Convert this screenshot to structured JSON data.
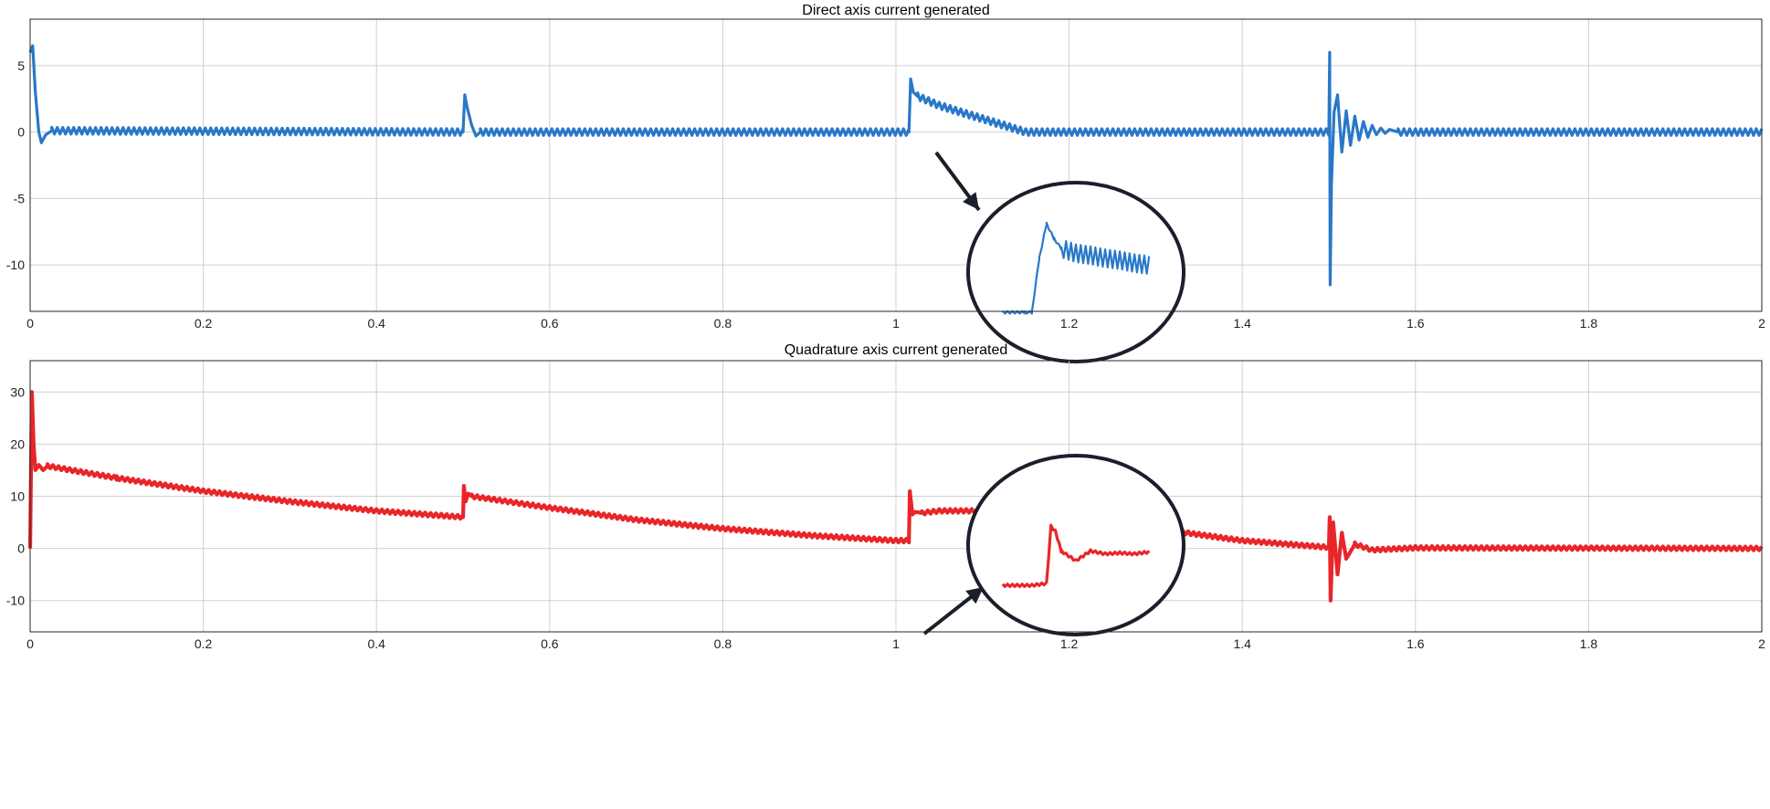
{
  "chart_data": [
    {
      "type": "line",
      "title": "Direct axis current generated",
      "xlabel": "",
      "ylabel": "",
      "xlim": [
        0,
        2
      ],
      "ylim": [
        -13.5,
        8.5
      ],
      "xticks": [
        0,
        0.2,
        0.4,
        0.6,
        0.8,
        1,
        1.2,
        1.4,
        1.6,
        1.8,
        2
      ],
      "xtick_labels": [
        "0",
        "0.2",
        "0.4",
        "0.6",
        "0.8",
        "1",
        "1.2",
        "1.4",
        "1.6",
        "1.8",
        "2"
      ],
      "yticks": [
        5,
        0,
        -5,
        -10
      ],
      "ytick_labels": [
        "5",
        "0",
        "-5",
        "-10"
      ],
      "grid": true,
      "series": [
        {
          "color": "#2878c8",
          "x": [
            0,
            0.003,
            0.006,
            0.01,
            0.013,
            0.018,
            0.025,
            0.5,
            0.502,
            0.505,
            0.51,
            0.515,
            0.52,
            1.015,
            1.017,
            1.02,
            1.025,
            1.05,
            1.1,
            1.15,
            1.2,
            1.5,
            1.501,
            1.5015,
            1.503,
            1.506,
            1.51,
            1.515,
            1.52,
            1.525,
            1.53,
            1.535,
            1.54,
            1.545,
            1.55,
            1.555,
            1.56,
            1.565,
            1.57,
            1.58,
            1.6,
            2
          ],
          "y": [
            6.0,
            6.5,
            3.0,
            0.0,
            -0.8,
            -0.2,
            0.1,
            0.0,
            2.8,
            1.8,
            0.5,
            -0.3,
            0.0,
            0.0,
            4.0,
            3.0,
            2.7,
            2.0,
            1.0,
            0.0,
            0.0,
            0.0,
            6.0,
            -11.5,
            -4.0,
            1.5,
            2.8,
            -1.5,
            1.6,
            -1.0,
            1.2,
            -0.6,
            0.8,
            -0.4,
            0.5,
            -0.2,
            0.3,
            -0.1,
            0.2,
            0.0,
            0.0,
            0.0
          ]
        }
      ],
      "annotations": [
        {
          "type": "zoom-inset",
          "target": [
            1.02,
            1.4
          ],
          "inset_x": [
            0,
            1,
            1.5,
            2,
            2.5,
            3,
            3.5,
            4,
            5,
            6,
            7,
            8,
            9,
            10
          ],
          "inset_y": [
            0,
            0,
            0,
            0.0,
            5.5,
            9.0,
            7.5,
            6.5,
            6.0,
            5.8,
            5.5,
            5.3,
            5.0,
            4.8
          ]
        }
      ]
    },
    {
      "type": "line",
      "title": "Quadrature axis current generated",
      "xlabel": "",
      "ylabel": "",
      "xlim": [
        0,
        2
      ],
      "ylim": [
        -16,
        36
      ],
      "xticks": [
        0,
        0.2,
        0.4,
        0.6,
        0.8,
        1,
        1.2,
        1.4,
        1.6,
        1.8,
        2
      ],
      "xtick_labels": [
        "0",
        "0.2",
        "0.4",
        "0.6",
        "0.8",
        "1",
        "1.2",
        "1.4",
        "1.6",
        "1.8",
        "2"
      ],
      "yticks": [
        30,
        20,
        10,
        0,
        -10
      ],
      "ytick_labels": [
        "30",
        "20",
        "10",
        "0",
        "-10"
      ],
      "grid": true,
      "series": [
        {
          "color": "#e8262a",
          "x": [
            0,
            0.002,
            0.004,
            0.006,
            0.01,
            0.015,
            0.02,
            0.1,
            0.2,
            0.3,
            0.4,
            0.5,
            0.501,
            0.503,
            0.506,
            0.51,
            0.6,
            0.7,
            0.8,
            0.9,
            1.0,
            1.015,
            1.016,
            1.019,
            1.022,
            1.03,
            1.05,
            1.1,
            1.15,
            1.2,
            1.3,
            1.4,
            1.5,
            1.501,
            1.502,
            1.505,
            1.51,
            1.515,
            1.52,
            1.53,
            1.55,
            1.6,
            2
          ],
          "y": [
            0,
            30.0,
            20.0,
            15.0,
            16.0,
            15.0,
            15.8,
            13.5,
            11.0,
            9.0,
            7.2,
            6.0,
            12.0,
            9.0,
            10.5,
            10.0,
            7.8,
            5.5,
            3.8,
            2.5,
            1.5,
            1.5,
            11.0,
            6.5,
            7.0,
            6.8,
            7.2,
            7.2,
            7.0,
            6.2,
            3.8,
            1.5,
            0.2,
            6.0,
            -10.0,
            5.0,
            -5.0,
            3.0,
            -2.0,
            0.8,
            -0.3,
            0.1,
            0.0
          ]
        }
      ],
      "annotations": [
        {
          "type": "zoom-inset",
          "target": [
            1.02,
            1.1
          ],
          "inset_x": [
            0,
            1,
            2,
            3,
            3.3,
            3.6,
            4,
            5,
            6,
            7,
            8,
            9,
            10
          ],
          "inset_y": [
            0,
            0,
            0,
            0.2,
            6.0,
            5.5,
            3.5,
            2.5,
            3.5,
            3.2,
            3.3,
            3.2,
            3.4
          ]
        }
      ]
    }
  ]
}
